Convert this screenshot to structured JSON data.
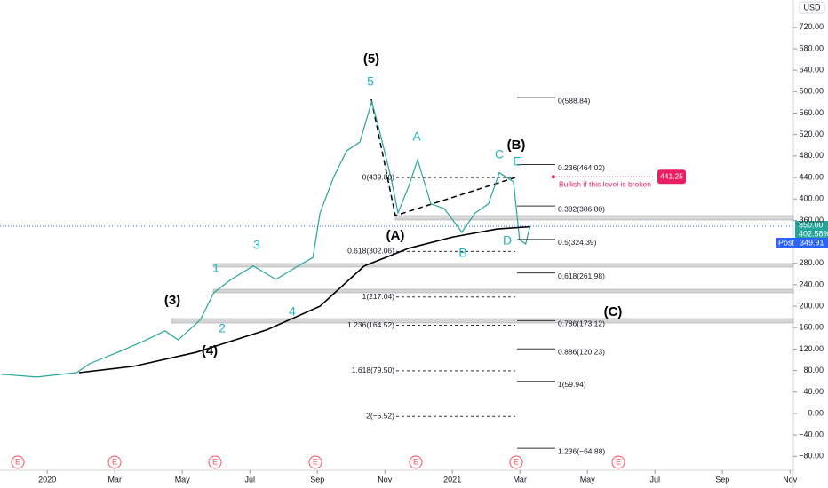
{
  "chart_data": {
    "type": "line",
    "currency": "USD",
    "xlim": [
      -1.4,
      22.1
    ],
    "xticks": [
      {
        "value": 0,
        "label": "2020"
      },
      {
        "value": 2,
        "label": "Mar"
      },
      {
        "value": 4,
        "label": "May"
      },
      {
        "value": 6,
        "label": "Jul"
      },
      {
        "value": 8,
        "label": "Sep"
      },
      {
        "value": 10,
        "label": "Nov"
      },
      {
        "value": 12,
        "label": "2021"
      },
      {
        "value": 14,
        "label": "Mar"
      },
      {
        "value": 16,
        "label": "May"
      },
      {
        "value": 18,
        "label": "Jul"
      },
      {
        "value": 20,
        "label": "Sep"
      },
      {
        "value": 22,
        "label": "Nov"
      }
    ],
    "ylim": [
      -106,
      771
    ],
    "yticks": [
      {
        "value": 720,
        "label": "720.00"
      },
      {
        "value": 680,
        "label": "680.00"
      },
      {
        "value": 640,
        "label": "640.00"
      },
      {
        "value": 600,
        "label": "600.00"
      },
      {
        "value": 560,
        "label": "560.00"
      },
      {
        "value": 520,
        "label": "520.00"
      },
      {
        "value": 480,
        "label": "480.00"
      },
      {
        "value": 440,
        "label": "440.00"
      },
      {
        "value": 400,
        "label": "400.00"
      },
      {
        "value": 360,
        "label": "360.00"
      },
      {
        "value": 280,
        "label": "280.00"
      },
      {
        "value": 240,
        "label": "240.00"
      },
      {
        "value": 200,
        "label": "200.00"
      },
      {
        "value": 160,
        "label": "160.00"
      },
      {
        "value": 120,
        "label": "120.00"
      },
      {
        "value": 80,
        "label": "80.00"
      },
      {
        "value": 40,
        "label": "40.00"
      },
      {
        "value": 0,
        "label": "0.00"
      },
      {
        "value": -40,
        "label": "−40.00"
      },
      {
        "value": -80,
        "label": "−80.00"
      }
    ],
    "grid": false,
    "series": [
      {
        "color": "#26a69a",
        "x": [
          -1.36,
          -0.31,
          0.87,
          1.26,
          2.05,
          2.83,
          3.49,
          3.88,
          4.54,
          4.93,
          5.45,
          6.1,
          6.77,
          7.43,
          7.87,
          8.08,
          8.48,
          8.87,
          9.26,
          9.61,
          9.79,
          10.18,
          10.39,
          10.71,
          10.97,
          11.36,
          11.76,
          12.28,
          12.68,
          13.07,
          13.39,
          13.81,
          13.99,
          14.17,
          14.3
        ],
        "values": [
          73,
          68,
          76,
          93,
          113,
          134,
          154,
          137,
          175,
          225,
          250,
          275,
          250,
          275,
          291,
          374,
          440,
          490,
          506,
          581,
          540,
          440,
          374,
          424,
          473,
          391,
          382,
          338,
          374,
          391,
          449,
          432,
          324,
          316,
          349
        ]
      },
      {
        "color": "#000000",
        "x": [
          0.94,
          2.57,
          4.41,
          6.51,
          8.08,
          9.39,
          10.71,
          12.02,
          13.33,
          14.3
        ],
        "values": [
          76,
          88,
          114,
          156,
          200,
          275,
          308,
          329,
          344,
          348
        ]
      }
    ],
    "fib_left": [
      {
        "value": 439.8,
        "label": "0(439.80)"
      },
      {
        "value": 302.06,
        "label": "0.618(302.06)"
      },
      {
        "value": 217.04,
        "label": "1(217.04)"
      },
      {
        "value": 164.52,
        "label": "1.236(164.52)"
      },
      {
        "value": 79.5,
        "label": "1.618(79.50)"
      },
      {
        "value": -5.52,
        "label": "2(−5.52)"
      }
    ],
    "fib_right": [
      {
        "value": 588.84,
        "label": "0(588.84)"
      },
      {
        "value": 464.02,
        "label": "0.236(464.02)"
      },
      {
        "value": 386.8,
        "label": "0.382(386.80)"
      },
      {
        "value": 324.39,
        "label": "0.5(324.39)"
      },
      {
        "value": 261.98,
        "label": "0.618(261.98)"
      },
      {
        "value": 173.12,
        "label": "0.786(173.12)"
      },
      {
        "value": 120.23,
        "label": "0.886(120.23)"
      },
      {
        "value": 59.94,
        "label": "1(59.94)"
      },
      {
        "value": -64.88,
        "label": "1.236(−64.88)"
      }
    ],
    "wave_labels_major": [
      "(5)",
      "(B)",
      "(A)",
      "(3)",
      "(4)",
      "(C)"
    ],
    "wave_labels_minor": [
      "5",
      "A",
      "C",
      "E",
      "B",
      "D",
      "1",
      "2",
      "3",
      "4"
    ],
    "alert": {
      "value": 441.25,
      "label": "441.25",
      "note": "Bullish if this level is broken"
    },
    "last_price": "350.00",
    "last_change": "402.58%",
    "post_label": "Post",
    "post_price": "349.91",
    "earnings": [
      "E",
      "E",
      "E",
      "E",
      "E",
      "E",
      "E"
    ]
  }
}
